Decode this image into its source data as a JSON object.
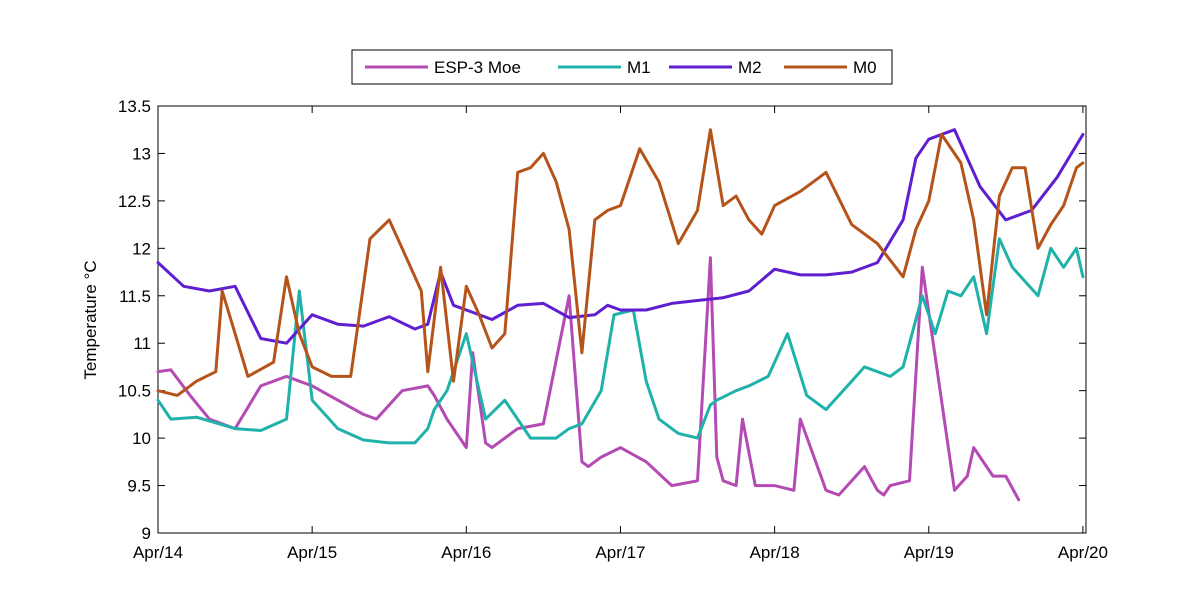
{
  "chart_data": {
    "type": "line",
    "title": "",
    "xlabel": "",
    "ylabel": "Temperature °C",
    "ylim": [
      9,
      13.5
    ],
    "xlim": [
      "Apr/14",
      "Apr/20"
    ],
    "grid": false,
    "legend_position": "top-center",
    "x_ticks": [
      "Apr/14",
      "Apr/15",
      "Apr/16",
      "Apr/17",
      "Apr/18",
      "Apr/19",
      "Apr/20"
    ],
    "y_ticks": [
      "9",
      "9.5",
      "10",
      "10.5",
      "11",
      "11.5",
      "12",
      "12.5",
      "13",
      "13.5"
    ],
    "series": [
      {
        "name": "ESP-3 Moe",
        "color": "#b44ab4",
        "x": [
          "Apr/14 00:00",
          "Apr/14 02:00",
          "Apr/14 05:00",
          "Apr/14 08:00",
          "Apr/14 12:00",
          "Apr/14 16:00",
          "Apr/14 20:00",
          "Apr/14 22:00",
          "Apr/15 00:00",
          "Apr/15 04:00",
          "Apr/15 08:00",
          "Apr/15 10:00",
          "Apr/15 14:00",
          "Apr/15 18:00",
          "Apr/15 19:00",
          "Apr/15 21:00",
          "Apr/15 23:00",
          "Apr/16 00:00",
          "Apr/16 01:00",
          "Apr/16 03:00",
          "Apr/16 04:00",
          "Apr/16 08:00",
          "Apr/16 12:00",
          "Apr/16 16:00",
          "Apr/16 18:00",
          "Apr/16 19:00",
          "Apr/16 21:00",
          "Apr/17 00:00",
          "Apr/17 04:00",
          "Apr/17 08:00",
          "Apr/17 12:00",
          "Apr/17 14:00",
          "Apr/17 15:00",
          "Apr/17 16:00",
          "Apr/17 18:00",
          "Apr/17 19:00",
          "Apr/17 21:00",
          "Apr/18 00:00",
          "Apr/18 03:00",
          "Apr/18 04:00",
          "Apr/18 08:00",
          "Apr/18 10:00",
          "Apr/18 14:00",
          "Apr/18 16:00",
          "Apr/18 17:00",
          "Apr/18 18:00",
          "Apr/18 21:00",
          "Apr/18 23:00",
          "Apr/19 04:00",
          "Apr/19 06:00",
          "Apr/19 07:00",
          "Apr/19 10:00",
          "Apr/19 12:00",
          "Apr/19 14:00"
        ],
        "values": [
          10.7,
          10.72,
          10.45,
          10.2,
          10.1,
          10.55,
          10.65,
          10.6,
          10.55,
          10.4,
          10.25,
          10.2,
          10.5,
          10.55,
          10.45,
          10.2,
          10.0,
          9.9,
          10.9,
          9.95,
          9.9,
          10.1,
          10.15,
          11.5,
          9.75,
          9.7,
          9.8,
          9.9,
          9.75,
          9.5,
          9.55,
          11.9,
          9.8,
          9.55,
          9.5,
          10.2,
          9.5,
          9.5,
          9.45,
          10.2,
          9.45,
          9.4,
          9.7,
          9.45,
          9.4,
          9.5,
          9.55,
          11.8,
          9.45,
          9.6,
          9.9,
          9.6,
          9.6,
          9.35
        ]
      },
      {
        "name": "M1",
        "color": "#20b2aa",
        "x": [
          "Apr/14 00:00",
          "Apr/14 02:00",
          "Apr/14 06:00",
          "Apr/14 12:00",
          "Apr/14 16:00",
          "Apr/14 20:00",
          "Apr/14 22:00",
          "Apr/15 00:00",
          "Apr/15 04:00",
          "Apr/15 08:00",
          "Apr/15 12:00",
          "Apr/15 16:00",
          "Apr/15 18:00",
          "Apr/15 19:00",
          "Apr/15 21:00",
          "Apr/16 00:00",
          "Apr/16 03:00",
          "Apr/16 06:00",
          "Apr/16 10:00",
          "Apr/16 14:00",
          "Apr/16 16:00",
          "Apr/16 18:00",
          "Apr/16 21:00",
          "Apr/16 23:00",
          "Apr/17 02:00",
          "Apr/17 04:00",
          "Apr/17 06:00",
          "Apr/17 09:00",
          "Apr/17 12:00",
          "Apr/17 14:00",
          "Apr/17 15:00",
          "Apr/17 18:00",
          "Apr/17 20:00",
          "Apr/17 23:00",
          "Apr/18 02:00",
          "Apr/18 05:00",
          "Apr/18 08:00",
          "Apr/18 12:00",
          "Apr/18 14:00",
          "Apr/18 16:00",
          "Apr/18 18:00",
          "Apr/18 20:00",
          "Apr/18 21:00",
          "Apr/18 23:00",
          "Apr/19 01:00",
          "Apr/19 03:00",
          "Apr/19 05:00",
          "Apr/19 07:00",
          "Apr/19 09:00",
          "Apr/19 11:00",
          "Apr/19 13:00",
          "Apr/19 17:00",
          "Apr/19 19:00",
          "Apr/19 21:00",
          "Apr/19 23:00",
          "Apr/20 00:00"
        ],
        "values": [
          10.4,
          10.2,
          10.22,
          10.1,
          10.08,
          10.2,
          11.55,
          10.4,
          10.1,
          9.98,
          9.95,
          9.95,
          10.1,
          10.3,
          10.5,
          11.1,
          10.2,
          10.4,
          10.0,
          10.0,
          10.1,
          10.15,
          10.5,
          11.3,
          11.35,
          10.6,
          10.2,
          10.05,
          10.0,
          10.35,
          10.4,
          10.5,
          10.55,
          10.65,
          11.1,
          10.45,
          10.3,
          10.6,
          10.75,
          10.7,
          10.65,
          10.75,
          11.0,
          11.5,
          11.1,
          11.55,
          11.5,
          11.7,
          11.1,
          12.1,
          11.8,
          11.5,
          12.0,
          11.8,
          12.0,
          11.7
        ]
      },
      {
        "name": "M2",
        "color": "#5f1fd0",
        "x": [
          "Apr/14 00:00",
          "Apr/14 04:00",
          "Apr/14 08:00",
          "Apr/14 12:00",
          "Apr/14 16:00",
          "Apr/14 20:00",
          "Apr/15 00:00",
          "Apr/15 04:00",
          "Apr/15 08:00",
          "Apr/15 12:00",
          "Apr/15 16:00",
          "Apr/15 18:00",
          "Apr/15 20:00",
          "Apr/15 22:00",
          "Apr/16 00:00",
          "Apr/16 04:00",
          "Apr/16 08:00",
          "Apr/16 12:00",
          "Apr/16 16:00",
          "Apr/16 20:00",
          "Apr/16 22:00",
          "Apr/17 00:00",
          "Apr/17 04:00",
          "Apr/17 08:00",
          "Apr/17 12:00",
          "Apr/17 16:00",
          "Apr/17 20:00",
          "Apr/18 00:00",
          "Apr/18 04:00",
          "Apr/18 08:00",
          "Apr/18 12:00",
          "Apr/18 16:00",
          "Apr/18 20:00",
          "Apr/18 22:00",
          "Apr/19 00:00",
          "Apr/19 04:00",
          "Apr/19 08:00",
          "Apr/19 12:00",
          "Apr/19 16:00",
          "Apr/19 20:00",
          "Apr/20 00:00"
        ],
        "values": [
          11.85,
          11.6,
          11.55,
          11.6,
          11.05,
          11.0,
          11.3,
          11.2,
          11.18,
          11.28,
          11.15,
          11.2,
          11.75,
          11.4,
          11.35,
          11.25,
          11.4,
          11.42,
          11.27,
          11.3,
          11.4,
          11.35,
          11.35,
          11.42,
          11.45,
          11.48,
          11.55,
          11.78,
          11.72,
          11.72,
          11.75,
          11.85,
          12.3,
          12.95,
          13.15,
          13.25,
          12.65,
          12.3,
          12.4,
          12.75,
          13.2
        ]
      },
      {
        "name": "M0",
        "color": "#b5541a",
        "x": [
          "Apr/14 00:00",
          "Apr/14 03:00",
          "Apr/14 06:00",
          "Apr/14 09:00",
          "Apr/14 10:00",
          "Apr/14 12:00",
          "Apr/14 14:00",
          "Apr/14 18:00",
          "Apr/14 20:00",
          "Apr/14 22:00",
          "Apr/15 00:00",
          "Apr/15 03:00",
          "Apr/15 06:00",
          "Apr/15 09:00",
          "Apr/15 12:00",
          "Apr/15 14:00",
          "Apr/15 17:00",
          "Apr/15 18:00",
          "Apr/15 20:00",
          "Apr/15 22:00",
          "Apr/16 00:00",
          "Apr/16 02:00",
          "Apr/16 04:00",
          "Apr/16 06:00",
          "Apr/16 08:00",
          "Apr/16 10:00",
          "Apr/16 12:00",
          "Apr/16 14:00",
          "Apr/16 16:00",
          "Apr/16 18:00",
          "Apr/16 20:00",
          "Apr/16 22:00",
          "Apr/17 00:00",
          "Apr/17 03:00",
          "Apr/17 06:00",
          "Apr/17 09:00",
          "Apr/17 12:00",
          "Apr/17 14:00",
          "Apr/17 16:00",
          "Apr/17 18:00",
          "Apr/17 20:00",
          "Apr/17 22:00",
          "Apr/18 00:00",
          "Apr/18 04:00",
          "Apr/18 08:00",
          "Apr/18 12:00",
          "Apr/18 16:00",
          "Apr/18 20:00",
          "Apr/18 22:00",
          "Apr/19 00:00",
          "Apr/19 02:00",
          "Apr/19 05:00",
          "Apr/19 07:00",
          "Apr/19 09:00",
          "Apr/19 11:00",
          "Apr/19 13:00",
          "Apr/19 15:00",
          "Apr/19 17:00",
          "Apr/19 19:00",
          "Apr/19 21:00",
          "Apr/19 23:00",
          "Apr/20 00:00"
        ],
        "values": [
          10.5,
          10.45,
          10.6,
          10.7,
          11.55,
          11.1,
          10.65,
          10.8,
          11.7,
          11.1,
          10.75,
          10.65,
          10.65,
          12.1,
          12.3,
          12.0,
          11.55,
          10.7,
          11.8,
          10.6,
          11.6,
          11.3,
          10.95,
          11.1,
          12.8,
          12.85,
          13.0,
          12.7,
          12.2,
          10.9,
          12.3,
          12.4,
          12.45,
          13.05,
          12.7,
          12.05,
          12.4,
          13.25,
          12.45,
          12.55,
          12.3,
          12.15,
          12.45,
          12.6,
          12.8,
          12.25,
          12.05,
          11.7,
          12.2,
          12.5,
          13.2,
          12.9,
          12.3,
          11.3,
          12.55,
          12.85,
          12.85,
          12.0,
          12.25,
          12.45,
          12.85,
          12.9
        ]
      }
    ]
  }
}
